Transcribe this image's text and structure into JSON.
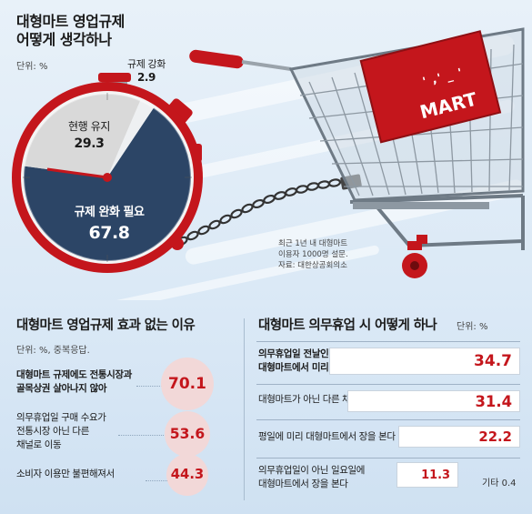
{
  "header": {
    "title_line1": "대형마트 영업규제",
    "title_line2": "어떻게 생각하나",
    "unit": "단위: %"
  },
  "source": {
    "line1": "최근 1년 내 대형마트",
    "line2": "이용자 1000명 설문.",
    "line3": "자료: 대한상공회의소"
  },
  "cart": {
    "sign_text": "MART",
    "sign_face": "' ,' _ '"
  },
  "colors": {
    "red": "#c4161c",
    "navy": "#2c4566",
    "grey": "#d9d9d9",
    "light": "#eef0f2"
  },
  "chart_data": [
    {
      "type": "pie",
      "title": "대형마트 영업규제 어떻게 생각하나",
      "unit": "%",
      "slices": [
        {
          "label": "규제 완화 필요",
          "value": 67.8,
          "color": "#2c4566"
        },
        {
          "label": "현행 유지",
          "value": 29.3,
          "color": "#d9d9d9"
        },
        {
          "label": "규제 강화",
          "value": 2.9,
          "color": "#eef0f2"
        }
      ]
    },
    {
      "type": "bar",
      "title": "대형마트 영업규제 효과 없는 이유",
      "unit": "단위: %, 중복응답.",
      "categories": [
        "대형마트 규제에도 전통시장과\n골목상권 살아나지 않아",
        "의무휴업일 구매 수요가\n전통시장 아닌 다른\n채널로 이동",
        "소비자 이용만 불편해져서"
      ],
      "values": [
        70.1,
        53.6,
        44.3
      ]
    },
    {
      "type": "bar",
      "title": "대형마트 의무휴업 시 어떻게 하나",
      "unit": "단위: %",
      "categories": [
        "의무휴업일 전날인 토요일에\n대형마트에서 미리 장을 본다",
        "대형마트가 아닌 다른 채널에서 장을 본다",
        "평일에 미리 대형마트에서 장을 본다",
        "의무휴업일이 아닌 일요일에\n대형마트에서 장을 본다"
      ],
      "values": [
        34.7,
        31.4,
        22.2,
        11.3
      ],
      "other_label": "기타 0.4"
    }
  ]
}
